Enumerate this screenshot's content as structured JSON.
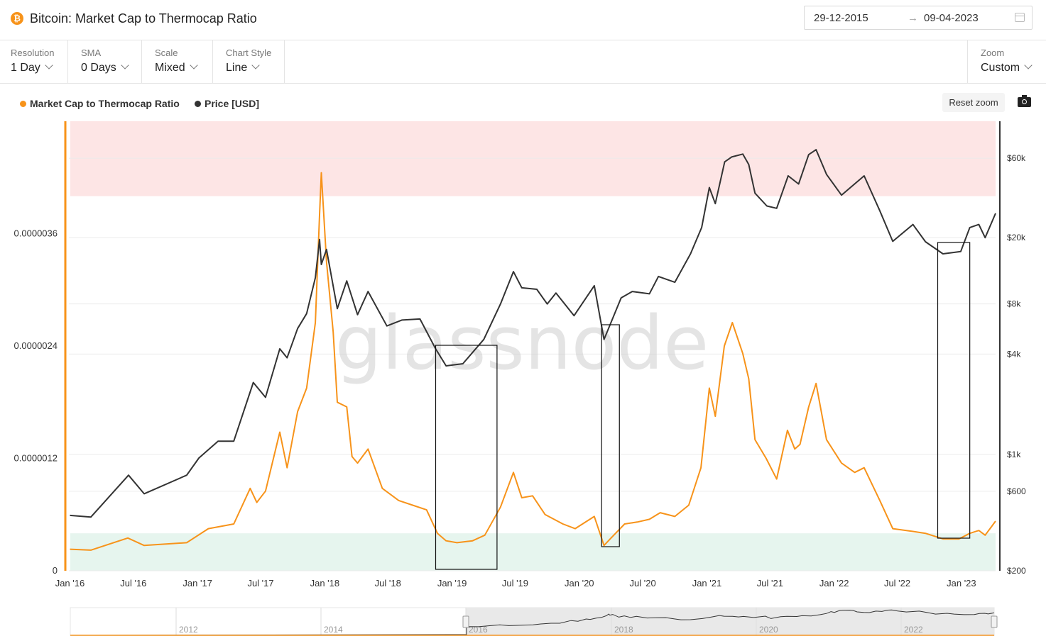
{
  "header": {
    "icon": "bitcoin-icon",
    "title": "Bitcoin: Market Cap to Thermocap Ratio",
    "date_from": "29-12-2015",
    "date_arrow": "→",
    "date_to": "09-04-2023"
  },
  "controls": {
    "resolution": {
      "label": "Resolution",
      "value": "1 Day"
    },
    "sma": {
      "label": "SMA",
      "value": "0 Days"
    },
    "scale": {
      "label": "Scale",
      "value": "Mixed"
    },
    "chart_style": {
      "label": "Chart Style",
      "value": "Line"
    },
    "zoom": {
      "label": "Zoom",
      "value": "Custom"
    }
  },
  "toolbar": {
    "reset_zoom": "Reset zoom"
  },
  "watermark": "glassnode",
  "colors": {
    "ratio": "#f7931a",
    "price": "#333333",
    "red_zone": "#fde5e5",
    "green_zone": "#e6f5ee"
  },
  "chart_data": {
    "type": "line",
    "legend_position": "top-left",
    "series": [
      {
        "name": "Market Cap to Thermocap Ratio",
        "axis": "left",
        "color": "#f7931a",
        "x": [
          "2016-01-01",
          "2016-03-01",
          "2016-06-15",
          "2016-08-01",
          "2016-12-01",
          "2017-02-01",
          "2017-04-15",
          "2017-06-01",
          "2017-06-20",
          "2017-07-15",
          "2017-08-25",
          "2017-09-15",
          "2017-10-15",
          "2017-11-10",
          "2017-12-05",
          "2017-12-17",
          "2017-12-22",
          "2018-01-06",
          "2018-01-25",
          "2018-02-06",
          "2018-03-05",
          "2018-03-20",
          "2018-04-05",
          "2018-05-05",
          "2018-06-15",
          "2018-08-01",
          "2018-09-10",
          "2018-10-20",
          "2018-11-20",
          "2018-12-15",
          "2019-01-15",
          "2019-03-01",
          "2019-04-05",
          "2019-05-20",
          "2019-06-26",
          "2019-07-20",
          "2019-08-20",
          "2019-09-25",
          "2019-11-15",
          "2019-12-20",
          "2020-02-13",
          "2020-03-12",
          "2020-04-01",
          "2020-05-10",
          "2020-06-15",
          "2020-07-20",
          "2020-08-20",
          "2020-10-01",
          "2020-11-10",
          "2020-12-15",
          "2021-01-08",
          "2021-01-25",
          "2021-02-20",
          "2021-03-15",
          "2021-04-14",
          "2021-05-01",
          "2021-05-19",
          "2021-06-20",
          "2021-07-20",
          "2021-08-20",
          "2021-09-10",
          "2021-09-25",
          "2021-10-20",
          "2021-11-10",
          "2021-12-10",
          "2022-01-22",
          "2022-03-01",
          "2022-03-28",
          "2022-05-12",
          "2022-06-18",
          "2022-08-15",
          "2022-09-20",
          "2022-11-09",
          "2022-12-25",
          "2023-01-25",
          "2023-02-20",
          "2023-03-10",
          "2023-04-09"
        ],
        "y": [
          2.3e-07,
          2.2e-07,
          3.5e-07,
          2.7e-07,
          3e-07,
          4.5e-07,
          5e-07,
          8.8e-07,
          7.3e-07,
          8.5e-07,
          1.48e-06,
          1.1e-06,
          1.7e-06,
          1.95e-06,
          2.65e-06,
          3.8e-06,
          4.25e-06,
          3.3e-06,
          2.55e-06,
          1.8e-06,
          1.75e-06,
          1.22e-06,
          1.15e-06,
          1.3e-06,
          8.8e-07,
          7.5e-07,
          7e-07,
          6.5e-07,
          4e-07,
          3.2e-07,
          3e-07,
          3.2e-07,
          3.8e-07,
          6.8e-07,
          1.05e-06,
          7.8e-07,
          8e-07,
          6e-07,
          5e-07,
          4.5e-07,
          5.8e-07,
          2.7e-07,
          3.5e-07,
          5e-07,
          5.2e-07,
          5.5e-07,
          6.2e-07,
          5.8e-07,
          7e-07,
          1.1e-06,
          1.95e-06,
          1.65e-06,
          2.4e-06,
          2.65e-06,
          2.32e-06,
          2.05e-06,
          1.4e-06,
          1.2e-06,
          9.8e-07,
          1.5e-06,
          1.3e-06,
          1.35e-06,
          1.75e-06,
          2e-06,
          1.4e-06,
          1.15e-06,
          1.05e-06,
          1.1e-06,
          7.5e-07,
          4.5e-07,
          4.2e-07,
          4e-07,
          3.4e-07,
          3.4e-07,
          4e-07,
          4.3e-07,
          3.8e-07,
          5.3e-07
        ]
      },
      {
        "name": "Price [USD]",
        "axis": "right",
        "color": "#333333",
        "x": [
          "2016-01-01",
          "2016-03-01",
          "2016-06-17",
          "2016-08-01",
          "2016-12-01",
          "2017-01-05",
          "2017-03-01",
          "2017-04-15",
          "2017-06-10",
          "2017-07-15",
          "2017-08-25",
          "2017-09-15",
          "2017-10-15",
          "2017-11-10",
          "2017-12-05",
          "2017-12-17",
          "2017-12-22",
          "2018-01-06",
          "2018-02-06",
          "2018-03-05",
          "2018-04-05",
          "2018-05-05",
          "2018-06-28",
          "2018-08-10",
          "2018-10-01",
          "2018-11-15",
          "2018-12-15",
          "2019-02-01",
          "2019-04-02",
          "2019-05-20",
          "2019-06-26",
          "2019-07-20",
          "2019-09-01",
          "2019-10-01",
          "2019-10-26",
          "2019-12-17",
          "2020-02-13",
          "2020-03-12",
          "2020-04-30",
          "2020-06-01",
          "2020-07-20",
          "2020-08-15",
          "2020-10-01",
          "2020-11-15",
          "2020-12-17",
          "2021-01-08",
          "2021-01-25",
          "2021-02-21",
          "2021-03-13",
          "2021-04-14",
          "2021-05-01",
          "2021-05-19",
          "2021-06-22",
          "2021-07-20",
          "2021-08-22",
          "2021-09-21",
          "2021-10-20",
          "2021-11-10",
          "2021-12-10",
          "2022-01-22",
          "2022-03-28",
          "2022-05-12",
          "2022-06-18",
          "2022-08-15",
          "2022-09-20",
          "2022-11-09",
          "2022-12-30",
          "2023-01-25",
          "2023-02-20",
          "2023-03-10",
          "2023-04-09"
        ],
        "y": [
          430,
          420,
          750,
          580,
          750,
          950,
          1200,
          1200,
          2700,
          2200,
          4300,
          3800,
          5700,
          7000,
          11500,
          19500,
          13800,
          17000,
          7500,
          11000,
          6900,
          9500,
          5900,
          6400,
          6500,
          4300,
          3400,
          3500,
          4900,
          8000,
          12500,
          10000,
          9800,
          8000,
          9300,
          6800,
          10300,
          4900,
          8700,
          9500,
          9200,
          11700,
          10800,
          16000,
          23000,
          40000,
          32000,
          57000,
          61000,
          63500,
          55000,
          37000,
          31000,
          30000,
          47000,
          42000,
          63000,
          67500,
          48000,
          36000,
          47000,
          29000,
          19000,
          24000,
          18900,
          16000,
          16500,
          23000,
          24000,
          20000,
          28000
        ]
      }
    ],
    "y_left": {
      "ticks": [
        "0",
        "0.0000012",
        "0.0000024",
        "0.0000036"
      ],
      "range": [
        0,
        4.8e-06
      ]
    },
    "y_right": {
      "scale": "log",
      "ticks": [
        "$200",
        "$600",
        "$1k",
        "$4k",
        "$8k",
        "$20k",
        "$60k"
      ],
      "range": [
        200,
        100000
      ]
    },
    "x_ticks": [
      "Jan '16",
      "Jul '16",
      "Jan '17",
      "Jul '17",
      "Jan '18",
      "Jul '18",
      "Jan '19",
      "Jul '19",
      "Jan '20",
      "Jul '20",
      "Jan '21",
      "Jul '21",
      "Jan '22",
      "Jul '22",
      "Jan '23"
    ],
    "bands": [
      {
        "zone": "overvalued",
        "axis": "left",
        "from": 4e-06,
        "to": 4.8e-06,
        "color": "#fde5e5"
      },
      {
        "zone": "undervalued",
        "axis": "left",
        "from": 0,
        "to": 4e-07,
        "color": "#e6f5ee"
      }
    ],
    "highlight_boxes": [
      {
        "from": "2018-11-15",
        "to": "2019-05-10"
      },
      {
        "from": "2020-03-05",
        "to": "2020-04-25"
      },
      {
        "from": "2022-10-25",
        "to": "2023-01-25"
      }
    ],
    "navigator": {
      "ticks": [
        "2012",
        "2014",
        "2016",
        "2018",
        "2020",
        "2022"
      ]
    }
  }
}
